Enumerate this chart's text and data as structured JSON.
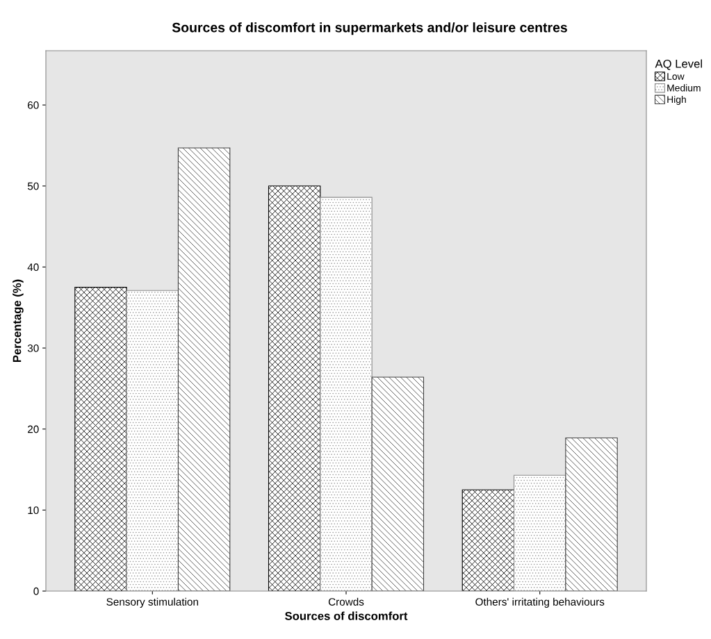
{
  "chart_data": {
    "type": "bar",
    "title": "Sources of discomfort in supermarkets and/or leisure centres",
    "xlabel": "Sources of discomfort",
    "ylabel": "Percentage (%)",
    "categories": [
      "Sensory stimulation",
      "Crowds",
      "Others' irritating behaviours"
    ],
    "series": [
      {
        "name": "Low",
        "color": "#000000",
        "values": [
          37.5,
          50.0,
          12.5
        ]
      },
      {
        "name": "Medium",
        "color": "#8c8c8c",
        "values": [
          37.1,
          48.6,
          14.3
        ]
      },
      {
        "name": "High",
        "color": "#404040",
        "values": [
          54.7,
          26.4,
          18.9
        ]
      }
    ],
    "legend_title": "AQ Level",
    "legend": "top right",
    "ylim": [
      0,
      66.7
    ],
    "yticks": [
      0,
      10,
      20,
      30,
      40,
      50,
      60
    ],
    "grid": false
  }
}
